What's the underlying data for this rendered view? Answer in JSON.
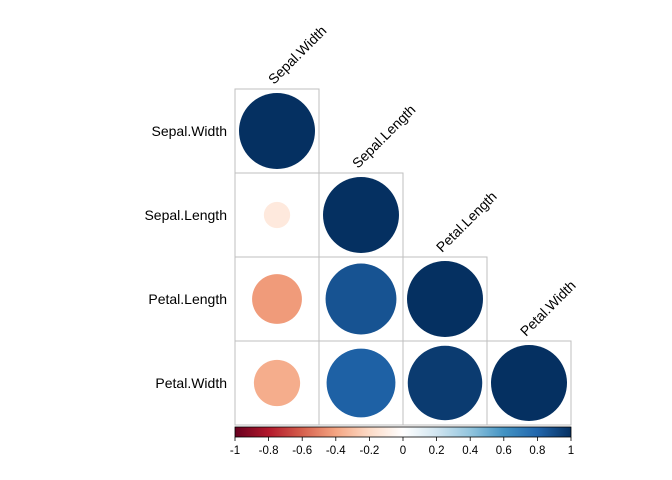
{
  "chart_data": {
    "type": "heatmap",
    "subtype": "correlation-matrix-lower-triangular-circles",
    "variables": [
      "Sepal.Width",
      "Sepal.Length",
      "Petal.Length",
      "Petal.Width"
    ],
    "row_labels": [
      "Sepal.Width",
      "Sepal.Length",
      "Petal.Length",
      "Petal.Width"
    ],
    "column_labels": [
      "Sepal.Width",
      "Sepal.Length",
      "Petal.Length",
      "Petal.Width"
    ],
    "cells": [
      {
        "row": "Sepal.Width",
        "col": "Sepal.Width",
        "value": 1.0
      },
      {
        "row": "Sepal.Length",
        "col": "Sepal.Width",
        "value": -0.12
      },
      {
        "row": "Sepal.Length",
        "col": "Sepal.Length",
        "value": 1.0
      },
      {
        "row": "Petal.Length",
        "col": "Sepal.Width",
        "value": -0.43
      },
      {
        "row": "Petal.Length",
        "col": "Sepal.Length",
        "value": 0.87
      },
      {
        "row": "Petal.Length",
        "col": "Petal.Length",
        "value": 1.0
      },
      {
        "row": "Petal.Width",
        "col": "Sepal.Width",
        "value": -0.37
      },
      {
        "row": "Petal.Width",
        "col": "Sepal.Length",
        "value": 0.82
      },
      {
        "row": "Petal.Width",
        "col": "Petal.Length",
        "value": 0.96
      },
      {
        "row": "Petal.Width",
        "col": "Petal.Width",
        "value": 1.0
      }
    ],
    "colorbar": {
      "range": [
        -1,
        1
      ],
      "tick_labels": [
        "-1",
        "-0.8",
        "-0.6",
        "-0.4",
        "-0.2",
        "0",
        "0.2",
        "0.4",
        "0.6",
        "0.8",
        "1"
      ],
      "placement": "bottom",
      "colors": [
        "#67001F",
        "#B2182B",
        "#D6604D",
        "#F4A582",
        "#FDDBC7",
        "#FFFFFF",
        "#D1E5F0",
        "#92C5DE",
        "#4393C3",
        "#2166AC",
        "#053061"
      ]
    },
    "column_label_rotation": "45deg",
    "grid": true
  }
}
